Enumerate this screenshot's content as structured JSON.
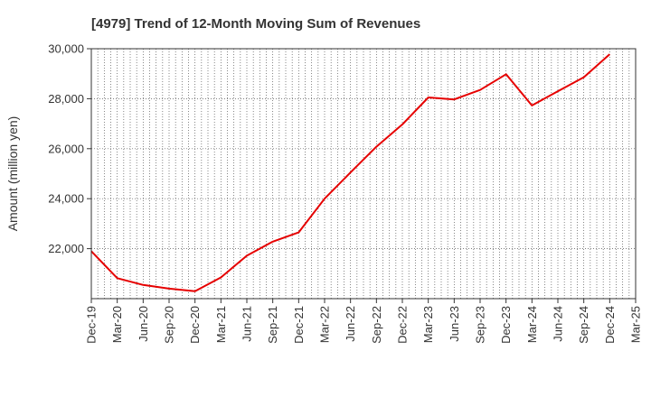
{
  "chart_data": {
    "type": "line",
    "title": "[4979]  Trend of 12-Month Moving Sum of Revenues",
    "xlabel": "",
    "ylabel": "Amount (million yen)",
    "x": [
      "Dec-19",
      "Mar-20",
      "Jun-20",
      "Sep-20",
      "Dec-20",
      "Mar-21",
      "Jun-21",
      "Sep-21",
      "Dec-21",
      "Mar-22",
      "Jun-22",
      "Sep-22",
      "Dec-22",
      "Mar-23",
      "Jun-23",
      "Sep-23",
      "Dec-23",
      "Mar-24",
      "Jun-24",
      "Sep-24",
      "Dec-24",
      "Mar-25"
    ],
    "series": [
      {
        "color": "#e60000",
        "values": [
          21900,
          20820,
          20550,
          20400,
          20300,
          20850,
          21720,
          22280,
          22650,
          24000,
          25050,
          26080,
          26970,
          28050,
          27970,
          28350,
          28980,
          27730,
          28300,
          28860,
          29780,
          null
        ]
      }
    ],
    "ylim": [
      20000,
      30000
    ],
    "yticks": [
      22000,
      24000,
      26000,
      28000,
      30000
    ],
    "ytick_labels": [
      "22,000",
      "24,000",
      "26,000",
      "28,000",
      "30,000"
    ],
    "grid": true,
    "legend": "none"
  }
}
